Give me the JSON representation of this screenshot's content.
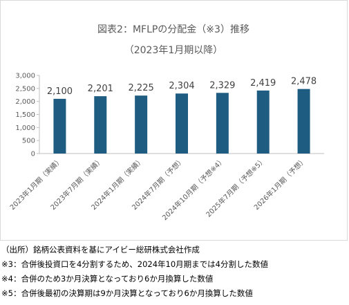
{
  "chart_data": {
    "type": "bar",
    "title": "図表2：MFLPの分配金（※3）推移",
    "subtitle": "（2023年1月期以降）",
    "categories": [
      "2023年1月期（実績）",
      "2023年7月期（実績）",
      "2024年1月期（実績）",
      "2024年7月期（予想）",
      "2024年10月期（予想※4）",
      "2025年7月期（予想※5）",
      "2026年1月期（予想）"
    ],
    "values": [
      2100,
      2201,
      2225,
      2304,
      2329,
      2419,
      2478
    ],
    "data_labels": [
      "2,100",
      "2,201",
      "2,225",
      "2,304",
      "2,329",
      "2,419",
      "2,478"
    ],
    "y_ticks": [
      0,
      500,
      1000,
      1500,
      2000,
      2500,
      3000
    ],
    "y_tick_labels": [
      "0",
      "500",
      "1,000",
      "1,500",
      "2,000",
      "2,500",
      "3,000"
    ],
    "ylim": [
      0,
      3000
    ],
    "xlabel": "",
    "ylabel": "",
    "grid": false,
    "legend": "none",
    "bar_color": "#1f5c82"
  },
  "notes": [
    "（出所）銘柄公表資料を基にアイビー総研株式会社作成",
    "※3：合併後投資口を4分割するため、2024年10月期までは4分割した数値",
    "※4：合併のため3か月決算となっており6か月換算した数値",
    "※5：合併後最初の決算期は9か月決算となっており6か月換算した数値"
  ]
}
